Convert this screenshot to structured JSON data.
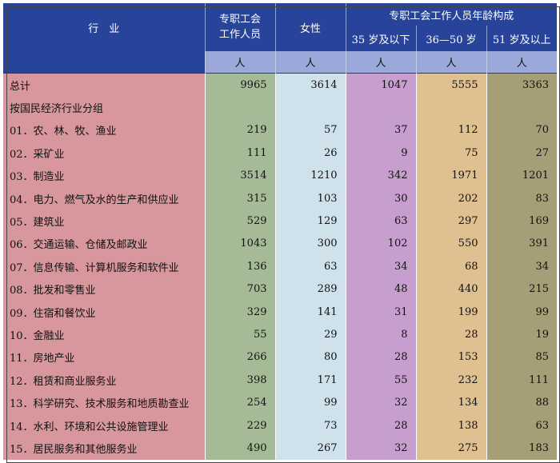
{
  "header": {
    "industry": "行　业",
    "full_time_staff": "专职工会\n工作人员",
    "female": "女性",
    "age_group": "专职工会工作人员年龄构成",
    "age_35": "35 岁及以下",
    "age_36_50": "36—50 岁",
    "age_51": "51 岁及以上",
    "unit": "人"
  },
  "rows": [
    {
      "label": "总计",
      "v": [
        "9965",
        "3614",
        "1047",
        "5555",
        "3363"
      ]
    },
    {
      "label": "按国民经济行业分组",
      "v": [
        "",
        "",
        "",
        "",
        ""
      ]
    },
    {
      "label": "01．农、林、牧、渔业",
      "v": [
        "219",
        "57",
        "37",
        "112",
        "70"
      ]
    },
    {
      "label": "02．采矿业",
      "v": [
        "111",
        "26",
        "9",
        "75",
        "27"
      ]
    },
    {
      "label": "03．制造业",
      "v": [
        "3514",
        "1210",
        "342",
        "1971",
        "1201"
      ]
    },
    {
      "label": "04．电力、燃气及水的生产和供应业",
      "v": [
        "315",
        "103",
        "30",
        "202",
        "83"
      ]
    },
    {
      "label": "05．建筑业",
      "v": [
        "529",
        "129",
        "63",
        "297",
        "169"
      ]
    },
    {
      "label": "06．交通运输、仓储及邮政业",
      "v": [
        "1043",
        "300",
        "102",
        "550",
        "391"
      ]
    },
    {
      "label": "07．信息传输、计算机服务和软件业",
      "v": [
        "136",
        "63",
        "34",
        "68",
        "34"
      ]
    },
    {
      "label": "08．批发和零售业",
      "v": [
        "703",
        "289",
        "48",
        "440",
        "215"
      ]
    },
    {
      "label": "09．住宿和餐饮业",
      "v": [
        "329",
        "141",
        "31",
        "199",
        "99"
      ]
    },
    {
      "label": "10．金融业",
      "v": [
        "55",
        "29",
        "8",
        "28",
        "19"
      ]
    },
    {
      "label": "11．房地产业",
      "v": [
        "266",
        "80",
        "28",
        "153",
        "85"
      ]
    },
    {
      "label": "12．租赁和商业服务业",
      "v": [
        "398",
        "171",
        "55",
        "232",
        "111"
      ]
    },
    {
      "label": "13．科学研究、技术服务和地质勘查业",
      "v": [
        "254",
        "99",
        "32",
        "134",
        "88"
      ]
    },
    {
      "label": "14．水利、环境和公共设施管理业",
      "v": [
        "229",
        "73",
        "28",
        "138",
        "63"
      ]
    },
    {
      "label": "15．居民服务和其他服务业",
      "v": [
        "490",
        "267",
        "32",
        "275",
        "183"
      ]
    }
  ]
}
